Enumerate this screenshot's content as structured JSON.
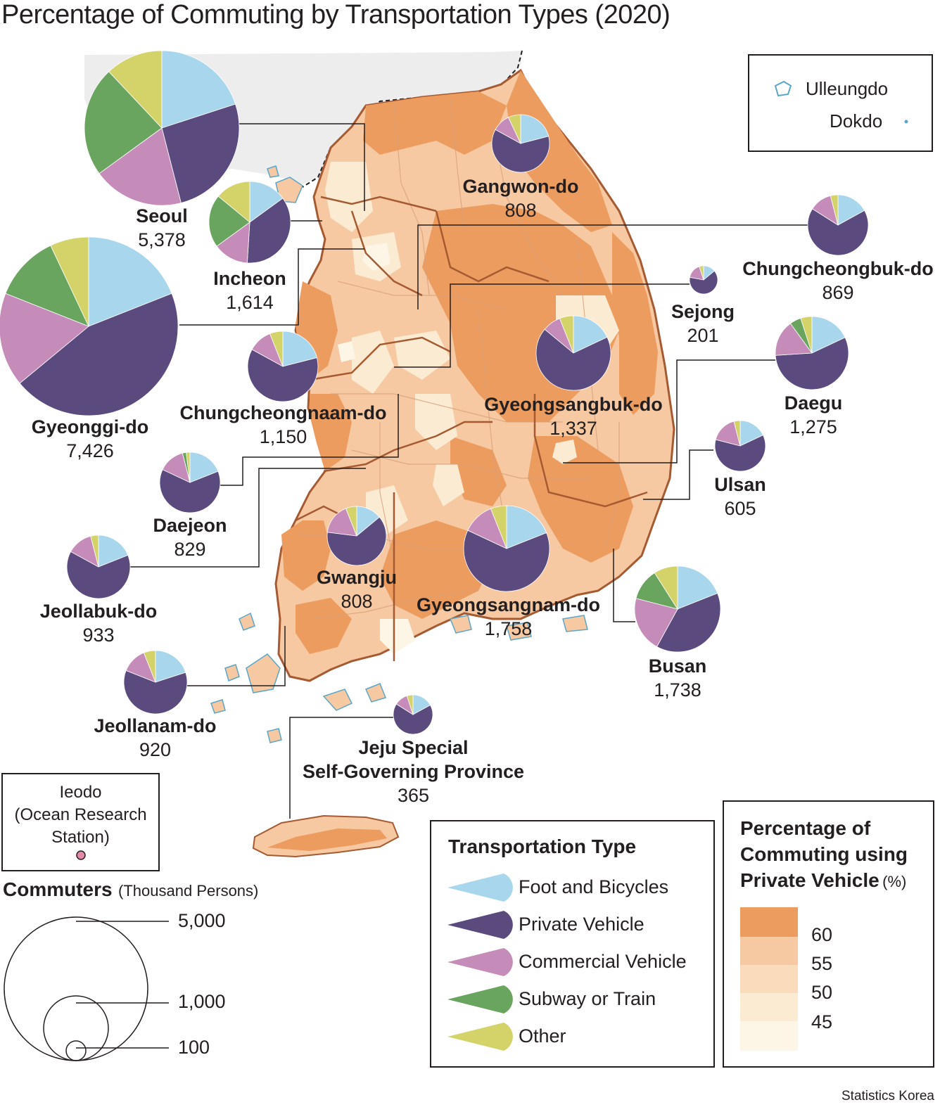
{
  "title": "Percentage of Commuting by Transportation Types (2020)",
  "source": "Statistics Korea",
  "colors": {
    "foot_and_bicycles": "#a8d6ec",
    "private_vehicle": "#5b4a7e",
    "commercial_vehicle": "#c58cba",
    "subway_or_train": "#6aa55f",
    "other": "#d4d36a",
    "pct_60_plus": "#ec9c5e",
    "pct_55_60": "#f6c9a2",
    "pct_50_55": "#fadcbd",
    "pct_45_50": "#fcebd3",
    "pct_below_45": "#fdf5e6",
    "sea_north": "#ededee",
    "border": "#a55a32"
  },
  "islands_box": {
    "ulleungdo": "Ulleungdo",
    "dokdo": "Dokdo"
  },
  "ieodo_box": {
    "line1": "Ieodo",
    "line2": "(Ocean Research",
    "line3": "Station)"
  },
  "size_legend": {
    "title": "Commuters",
    "unit": "(Thousand Persons)",
    "reference_values": [
      "5,000",
      "1,000",
      "100"
    ]
  },
  "type_legend": {
    "title": "Transportation Type",
    "items": [
      {
        "label": "Foot and Bicycles",
        "color": "#a8d6ec"
      },
      {
        "label": "Private Vehicle",
        "color": "#5b4a7e"
      },
      {
        "label": "Commercial Vehicle",
        "color": "#c58cba"
      },
      {
        "label": "Subway or Train",
        "color": "#6aa55f"
      },
      {
        "label": "Other",
        "color": "#d4d36a"
      }
    ]
  },
  "pct_legend": {
    "title_line1": "Percentage of",
    "title_line2": "Commuting using",
    "title_line3": "Private Vehicle",
    "unit": "(%)",
    "breaks": [
      "60",
      "55",
      "50",
      "45"
    ]
  },
  "regions": [
    {
      "name": "Seoul",
      "value": "5,378",
      "shares": [
        20,
        26,
        19,
        23,
        12
      ]
    },
    {
      "name": "Incheon",
      "value": "1,614",
      "shares": [
        15,
        36,
        14,
        21,
        14
      ]
    },
    {
      "name": "Gyeonggi-do",
      "value": "7,426",
      "shares": [
        19,
        45,
        17,
        12,
        7
      ]
    },
    {
      "name": "Gangwon-do",
      "value": "808",
      "shares": [
        21,
        62,
        10,
        0,
        7
      ]
    },
    {
      "name": "Chungcheongbuk-do",
      "value": "869",
      "shares": [
        17,
        67,
        12,
        0,
        4
      ]
    },
    {
      "name": "Sejong",
      "value": "201",
      "shares": [
        14,
        64,
        17,
        0,
        5
      ]
    },
    {
      "name": "Chungcheongnaam-do",
      "value": "1,150",
      "shares": [
        21,
        62,
        11,
        0,
        6
      ]
    },
    {
      "name": "Daejeon",
      "value": "829",
      "shares": [
        19,
        63,
        14,
        2,
        2
      ]
    },
    {
      "name": "Gyeongsangbuk-do",
      "value": "1,337",
      "shares": [
        18,
        68,
        8,
        0,
        6
      ]
    },
    {
      "name": "Daegu",
      "value": "1,275",
      "shares": [
        18,
        56,
        16,
        5,
        5
      ]
    },
    {
      "name": "Ulsan",
      "value": "605",
      "shares": [
        18,
        61,
        17,
        0,
        4
      ]
    },
    {
      "name": "Jeollabuk-do",
      "value": "933",
      "shares": [
        19,
        64,
        13,
        0,
        4
      ]
    },
    {
      "name": "Gwangju",
      "value": "808",
      "shares": [
        14,
        63,
        17,
        0,
        6
      ]
    },
    {
      "name": "Gyeongsangnam-do",
      "value": "1,758",
      "shares": [
        19,
        63,
        12,
        0,
        6
      ]
    },
    {
      "name": "Busan",
      "value": "1,738",
      "shares": [
        19,
        39,
        21,
        12,
        9
      ]
    },
    {
      "name": "Jeollanam-do",
      "value": "920",
      "shares": [
        20,
        61,
        13,
        0,
        6
      ]
    },
    {
      "name": "Jeju Special Self-Governing Province",
      "name_line1": "Jeju Special",
      "name_line2": "Self-Governing Province",
      "value": "365",
      "shares": [
        17,
        67,
        11,
        0,
        5
      ]
    }
  ]
}
